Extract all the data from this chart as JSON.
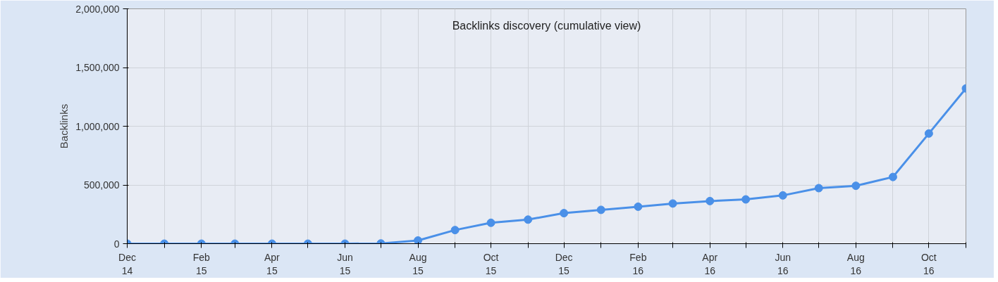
{
  "chart_data": {
    "type": "line",
    "title": "Backlinks discovery (cumulative view)",
    "ylabel": "Backlinks",
    "x": [
      "2014-12",
      "2015-01",
      "2015-02",
      "2015-03",
      "2015-04",
      "2015-05",
      "2015-06",
      "2015-07",
      "2015-08",
      "2015-09",
      "2015-10",
      "2015-11",
      "2015-12",
      "2016-01",
      "2016-02",
      "2016-03",
      "2016-04",
      "2016-05",
      "2016-06",
      "2016-07",
      "2016-08",
      "2016-09",
      "2016-10",
      "2016-11"
    ],
    "series": [
      {
        "color": "#4a90e8",
        "values": [
          0,
          0,
          0,
          0,
          0,
          0,
          0,
          2000,
          27000,
          116000,
          178000,
          205000,
          260000,
          288000,
          315000,
          342000,
          363000,
          377000,
          411000,
          473000,
          493000,
          568000,
          938000,
          1322000
        ]
      }
    ],
    "xlim": [
      "2014-12",
      "2016-11"
    ],
    "xticks": [
      {
        "value": "2014-12",
        "label": "Dec\n14"
      },
      {
        "value": "2015-01",
        "label": null
      },
      {
        "value": "2015-02",
        "label": "Feb\n15"
      },
      {
        "value": "2015-03",
        "label": null
      },
      {
        "value": "2015-04",
        "label": "Apr\n15"
      },
      {
        "value": "2015-05",
        "label": null
      },
      {
        "value": "2015-06",
        "label": "Jun\n15"
      },
      {
        "value": "2015-07",
        "label": null
      },
      {
        "value": "2015-08",
        "label": "Aug\n15"
      },
      {
        "value": "2015-09",
        "label": null
      },
      {
        "value": "2015-10",
        "label": "Oct\n15"
      },
      {
        "value": "2015-11",
        "label": null
      },
      {
        "value": "2015-12",
        "label": "Dec\n15"
      },
      {
        "value": "2016-01",
        "label": null
      },
      {
        "value": "2016-02",
        "label": "Feb\n16"
      },
      {
        "value": "2016-03",
        "label": null
      },
      {
        "value": "2016-04",
        "label": "Apr\n16"
      },
      {
        "value": "2016-05",
        "label": null
      },
      {
        "value": "2016-06",
        "label": "Jun\n16"
      },
      {
        "value": "2016-07",
        "label": null
      },
      {
        "value": "2016-08",
        "label": "Aug\n16"
      },
      {
        "value": "2016-09",
        "label": null
      },
      {
        "value": "2016-10",
        "label": "Oct\n16"
      },
      {
        "value": "2016-11",
        "label": null
      }
    ],
    "ylim": [
      0,
      2000000
    ],
    "yticks": [
      {
        "value": 0,
        "label": "0"
      },
      {
        "value": 500000,
        "label": "500,000"
      },
      {
        "value": 1000000,
        "label": "1,000,000"
      },
      {
        "value": 1500000,
        "label": "1,500,000"
      },
      {
        "value": 2000000,
        "label": "2,000,000"
      }
    ],
    "grid": true,
    "marker": "circle",
    "line_style": "solid"
  }
}
